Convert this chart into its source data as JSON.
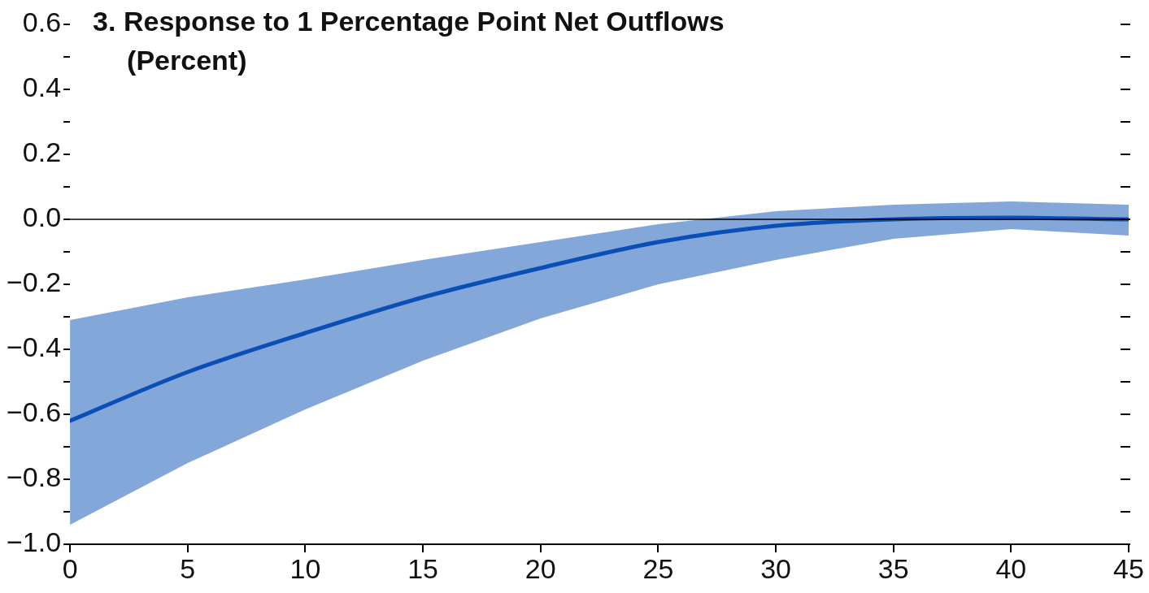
{
  "chart_data": {
    "type": "line",
    "title": "3. Response to 1 Percentage Point Net Outflows",
    "subtitle": "(Percent)",
    "x": [
      0,
      5,
      10,
      15,
      20,
      25,
      30,
      35,
      40,
      45
    ],
    "series": [
      {
        "color": "#0a4fb5",
        "values": [
          -0.62,
          -0.47,
          -0.35,
          -0.24,
          -0.15,
          -0.07,
          -0.02,
          0.0,
          0.005,
          0.0
        ],
        "lower": [
          -0.94,
          -0.75,
          -0.585,
          -0.435,
          -0.305,
          -0.2,
          -0.125,
          -0.06,
          -0.03,
          -0.05
        ],
        "upper": [
          -0.31,
          -0.24,
          -0.185,
          -0.125,
          -0.07,
          -0.015,
          0.025,
          0.045,
          0.055,
          0.045
        ]
      }
    ],
    "xlim": [
      0,
      45
    ],
    "xticks": [
      0,
      5,
      10,
      15,
      20,
      25,
      30,
      35,
      40,
      45
    ],
    "ylim": [
      -1.0,
      0.6
    ],
    "yticks": [
      {
        "value": -1.0,
        "label": "−1.0"
      },
      {
        "value": -0.9,
        "label": null
      },
      {
        "value": -0.8,
        "label": "−0.8"
      },
      {
        "value": -0.7,
        "label": null
      },
      {
        "value": -0.6,
        "label": "−0.6"
      },
      {
        "value": -0.5,
        "label": null
      },
      {
        "value": -0.4,
        "label": "−0.4"
      },
      {
        "value": -0.3,
        "label": null
      },
      {
        "value": -0.2,
        "label": "−0.2"
      },
      {
        "value": -0.1,
        "label": null
      },
      {
        "value": 0.0,
        "label": "0.0"
      },
      {
        "value": 0.1,
        "label": null
      },
      {
        "value": 0.2,
        "label": "0.2"
      },
      {
        "value": 0.3,
        "label": null
      },
      {
        "value": 0.4,
        "label": "0.4"
      },
      {
        "value": 0.5,
        "label": null
      },
      {
        "value": 0.6,
        "label": "0.6"
      }
    ],
    "ref_lines": [
      {
        "axis": "y",
        "value": 0,
        "color": "#000000"
      }
    ],
    "grid": false,
    "legend": false,
    "marker": "none",
    "line_style": "solid"
  }
}
